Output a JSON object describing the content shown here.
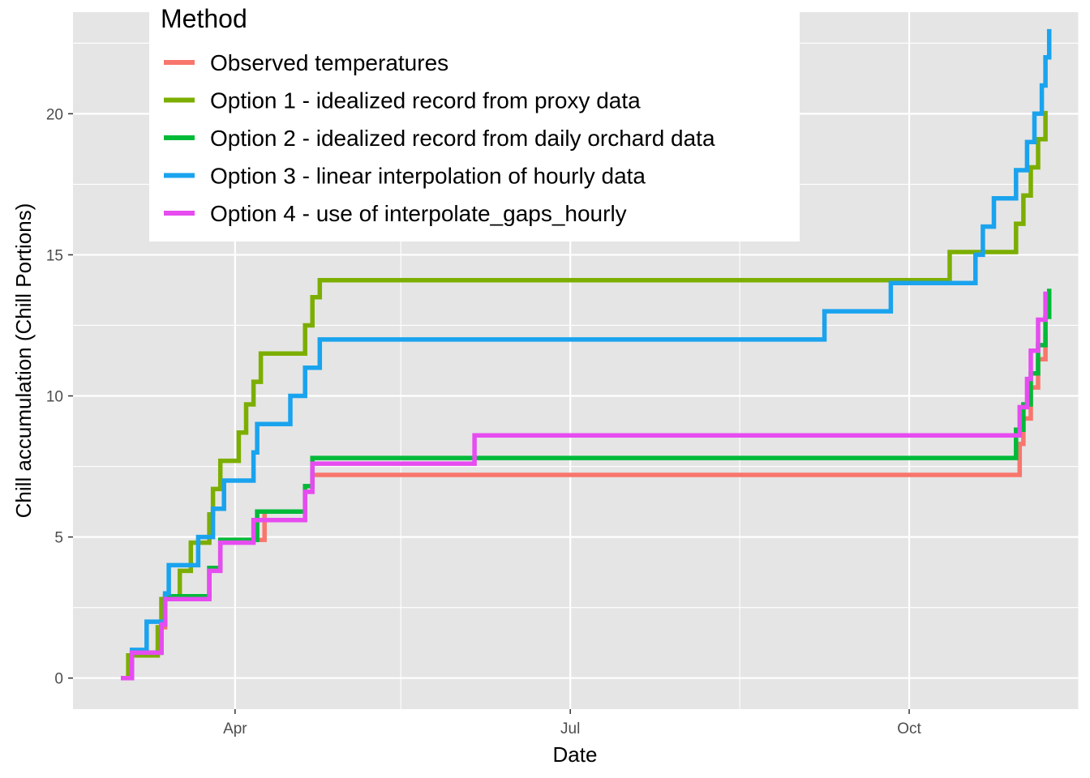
{
  "chart_data": {
    "type": "line",
    "step": true,
    "xlabel": "Date",
    "ylabel": "Chill accumulation (Chill Portions)",
    "x_ticks": [
      {
        "date": "2023-04-01",
        "label": "Apr"
      },
      {
        "date": "2023-07-01",
        "label": "Jul"
      },
      {
        "date": "2023-10-01",
        "label": "Oct"
      }
    ],
    "x_minor_ticks": [
      "2023-05-16",
      "2023-08-16",
      "2023-11-16"
    ],
    "xlim": [
      "2023-02-16",
      "2023-11-16"
    ],
    "ylim": [
      -1.1,
      23.6
    ],
    "y_ticks": [
      0,
      5,
      10,
      15,
      20
    ],
    "y_minor_ticks": [
      2.5,
      7.5,
      12.5,
      17.5,
      22.5
    ],
    "grid": true,
    "background": "#e5e5e5",
    "legend": {
      "title": "Method",
      "position": "top-left"
    },
    "series": [
      {
        "name": "Observed temperatures",
        "color": "#F8766D",
        "points": [
          [
            "2023-03-01",
            0
          ],
          [
            "2023-03-04",
            0.9
          ],
          [
            "2023-03-12",
            1.8
          ],
          [
            "2023-03-13",
            2.9
          ],
          [
            "2023-03-25",
            3.9
          ],
          [
            "2023-03-28",
            4.9
          ],
          [
            "2023-04-09",
            5.9
          ],
          [
            "2023-04-20",
            6.8
          ],
          [
            "2023-04-22",
            7.2
          ],
          [
            "2023-10-31",
            8.3
          ],
          [
            "2023-11-01",
            9.2
          ],
          [
            "2023-11-03",
            10.3
          ],
          [
            "2023-11-05",
            11.3
          ],
          [
            "2023-11-07",
            12.2
          ]
        ]
      },
      {
        "name": "Option 1 - idealized record from proxy data",
        "color": "#7CAE00",
        "points": [
          [
            "2023-03-01",
            0
          ],
          [
            "2023-03-03",
            0.8
          ],
          [
            "2023-03-11",
            1.8
          ],
          [
            "2023-03-12",
            2.8
          ],
          [
            "2023-03-17",
            3.8
          ],
          [
            "2023-03-20",
            4.8
          ],
          [
            "2023-03-25",
            5.8
          ],
          [
            "2023-03-26",
            6.7
          ],
          [
            "2023-03-28",
            7.7
          ],
          [
            "2023-04-02",
            8.7
          ],
          [
            "2023-04-04",
            9.7
          ],
          [
            "2023-04-06",
            10.5
          ],
          [
            "2023-04-08",
            11.5
          ],
          [
            "2023-04-20",
            12.5
          ],
          [
            "2023-04-22",
            13.5
          ],
          [
            "2023-04-24",
            14.1
          ],
          [
            "2023-10-12",
            15.1
          ],
          [
            "2023-10-30",
            16.1
          ],
          [
            "2023-11-01",
            17.1
          ],
          [
            "2023-11-03",
            18.1
          ],
          [
            "2023-11-05",
            19.1
          ],
          [
            "2023-11-07",
            20.1
          ]
        ]
      },
      {
        "name": "Option 2 - idealized record from daily orchard data",
        "color": "#00BA38",
        "points": [
          [
            "2023-03-01",
            0
          ],
          [
            "2023-03-04",
            0.9
          ],
          [
            "2023-03-12",
            1.9
          ],
          [
            "2023-03-13",
            2.9
          ],
          [
            "2023-03-25",
            3.9
          ],
          [
            "2023-03-28",
            4.9
          ],
          [
            "2023-04-07",
            5.9
          ],
          [
            "2023-04-20",
            6.8
          ],
          [
            "2023-04-22",
            7.8
          ],
          [
            "2023-10-30",
            8.8
          ],
          [
            "2023-11-01",
            9.7
          ],
          [
            "2023-11-03",
            10.8
          ],
          [
            "2023-11-05",
            11.8
          ],
          [
            "2023-11-07",
            12.8
          ],
          [
            "2023-11-08",
            13.8
          ]
        ]
      },
      {
        "name": "Option 3 - linear interpolation of hourly data",
        "color": "#1AA3EE",
        "points": [
          [
            "2023-03-01",
            0
          ],
          [
            "2023-03-04",
            1
          ],
          [
            "2023-03-08",
            2
          ],
          [
            "2023-03-13",
            3
          ],
          [
            "2023-03-14",
            4
          ],
          [
            "2023-03-22",
            5
          ],
          [
            "2023-03-26",
            6
          ],
          [
            "2023-03-29",
            7
          ],
          [
            "2023-04-06",
            8
          ],
          [
            "2023-04-07",
            9
          ],
          [
            "2023-04-16",
            10
          ],
          [
            "2023-04-20",
            11
          ],
          [
            "2023-04-24",
            12
          ],
          [
            "2023-09-08",
            13
          ],
          [
            "2023-09-26",
            14
          ],
          [
            "2023-10-19",
            15
          ],
          [
            "2023-10-21",
            16
          ],
          [
            "2023-10-24",
            17
          ],
          [
            "2023-10-30",
            18
          ],
          [
            "2023-11-02",
            19
          ],
          [
            "2023-11-04",
            20
          ],
          [
            "2023-11-06",
            21
          ],
          [
            "2023-11-07",
            22
          ],
          [
            "2023-11-08",
            23
          ]
        ]
      },
      {
        "name": "Option 4 - use of interpolate_gaps_hourly",
        "color": "#E64CF0",
        "points": [
          [
            "2023-03-01",
            0
          ],
          [
            "2023-03-04",
            0.9
          ],
          [
            "2023-03-12",
            1.9
          ],
          [
            "2023-03-13",
            2.8
          ],
          [
            "2023-03-25",
            3.8
          ],
          [
            "2023-03-28",
            4.8
          ],
          [
            "2023-04-06",
            5.6
          ],
          [
            "2023-04-20",
            6.6
          ],
          [
            "2023-04-22",
            7.6
          ],
          [
            "2023-06-05",
            8.6
          ],
          [
            "2023-10-31",
            9.6
          ],
          [
            "2023-11-02",
            10.6
          ],
          [
            "2023-11-03",
            11.6
          ],
          [
            "2023-11-05",
            12.7
          ],
          [
            "2023-11-07",
            13.7
          ]
        ]
      }
    ]
  }
}
